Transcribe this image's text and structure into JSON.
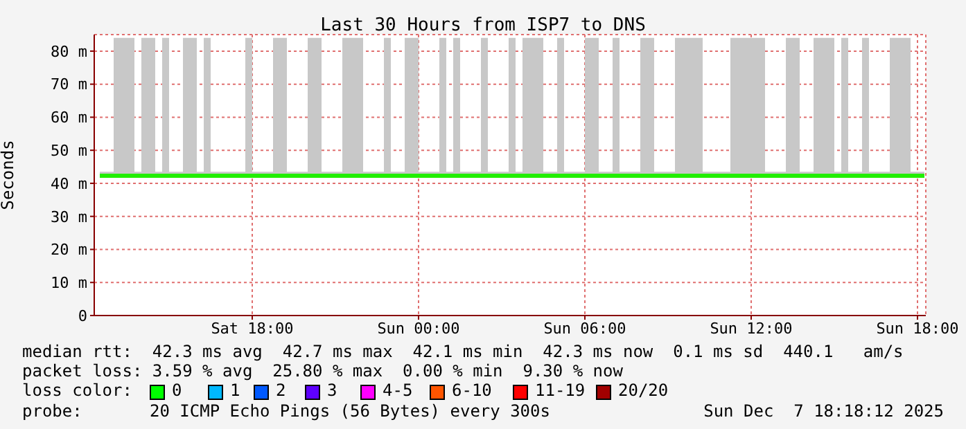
{
  "chart_data": {
    "type": "line",
    "title": "Last 30 Hours from ISP7 to DNS",
    "ylabel": "Seconds",
    "x": [
      "2025-12-06T12:30",
      "2025-12-06T12:45",
      "2025-12-06T13:00",
      "2025-12-06T13:15",
      "2025-12-06T13:30",
      "2025-12-06T13:45",
      "2025-12-06T14:00",
      "2025-12-06T14:15",
      "2025-12-06T14:30",
      "2025-12-06T14:45",
      "2025-12-06T15:00",
      "2025-12-06T15:15",
      "2025-12-06T15:30",
      "2025-12-06T15:45",
      "2025-12-06T16:00",
      "2025-12-06T16:15",
      "2025-12-06T16:30",
      "2025-12-06T16:45",
      "2025-12-06T17:00",
      "2025-12-06T17:15",
      "2025-12-06T17:30",
      "2025-12-06T17:45",
      "2025-12-06T18:00",
      "2025-12-06T18:15",
      "2025-12-06T18:30",
      "2025-12-06T18:45",
      "2025-12-06T19:00",
      "2025-12-06T19:15",
      "2025-12-06T19:30",
      "2025-12-06T19:45",
      "2025-12-06T20:00",
      "2025-12-06T20:15",
      "2025-12-06T20:30",
      "2025-12-06T20:45",
      "2025-12-06T21:00",
      "2025-12-06T21:15",
      "2025-12-06T21:30",
      "2025-12-06T21:45",
      "2025-12-06T22:00",
      "2025-12-06T22:15",
      "2025-12-06T22:30",
      "2025-12-06T22:45",
      "2025-12-06T23:00",
      "2025-12-06T23:15",
      "2025-12-06T23:30",
      "2025-12-06T23:45",
      "2025-12-07T00:00",
      "2025-12-07T00:15",
      "2025-12-07T00:30",
      "2025-12-07T00:45",
      "2025-12-07T01:00",
      "2025-12-07T01:15",
      "2025-12-07T01:30",
      "2025-12-07T01:45",
      "2025-12-07T02:00",
      "2025-12-07T02:15",
      "2025-12-07T02:30",
      "2025-12-07T02:45",
      "2025-12-07T03:00",
      "2025-12-07T03:15",
      "2025-12-07T03:30",
      "2025-12-07T03:45",
      "2025-12-07T04:00",
      "2025-12-07T04:15",
      "2025-12-07T04:30",
      "2025-12-07T04:45",
      "2025-12-07T05:00",
      "2025-12-07T05:15",
      "2025-12-07T05:30",
      "2025-12-07T05:45",
      "2025-12-07T06:00",
      "2025-12-07T06:15",
      "2025-12-07T06:30",
      "2025-12-07T06:45",
      "2025-12-07T07:00",
      "2025-12-07T07:15",
      "2025-12-07T07:30",
      "2025-12-07T07:45",
      "2025-12-07T08:00",
      "2025-12-07T08:15",
      "2025-12-07T08:30",
      "2025-12-07T08:45",
      "2025-12-07T09:00",
      "2025-12-07T09:15",
      "2025-12-07T09:30",
      "2025-12-07T09:45",
      "2025-12-07T10:00",
      "2025-12-07T10:15",
      "2025-12-07T10:30",
      "2025-12-07T10:45",
      "2025-12-07T11:00",
      "2025-12-07T11:15",
      "2025-12-07T11:30",
      "2025-12-07T11:45",
      "2025-12-07T12:00",
      "2025-12-07T12:15",
      "2025-12-07T12:30",
      "2025-12-07T12:45",
      "2025-12-07T13:00",
      "2025-12-07T13:15",
      "2025-12-07T13:30",
      "2025-12-07T13:45",
      "2025-12-07T14:00",
      "2025-12-07T14:15",
      "2025-12-07T14:30",
      "2025-12-07T14:45",
      "2025-12-07T15:00",
      "2025-12-07T15:15",
      "2025-12-07T15:30",
      "2025-12-07T15:45",
      "2025-12-07T16:00",
      "2025-12-07T16:15",
      "2025-12-07T16:30",
      "2025-12-07T16:45",
      "2025-12-07T17:00",
      "2025-12-07T17:15",
      "2025-12-07T17:30",
      "2025-12-07T17:45",
      "2025-12-07T18:00",
      "2025-12-07T18:15"
    ],
    "series": [
      {
        "color": "#22ee00",
        "values": [
          42.3,
          42.3,
          42.3,
          42.3,
          42.3,
          42.3,
          42.3,
          42.3,
          42.3,
          42.3,
          42.3,
          42.3,
          42.3,
          42.3,
          42.3,
          42.3,
          42.3,
          42.3,
          42.3,
          42.3,
          42.3,
          42.3,
          42.3,
          42.3,
          42.3,
          42.3,
          42.3,
          42.3,
          42.3,
          42.3,
          42.3,
          42.3,
          42.3,
          42.3,
          42.3,
          42.3,
          42.3,
          42.3,
          42.3,
          42.3,
          42.3,
          42.3,
          42.3,
          42.3,
          42.3,
          42.3,
          42.3,
          42.3,
          42.3,
          42.3,
          42.3,
          42.3,
          42.3,
          42.3,
          42.3,
          42.3,
          42.3,
          42.3,
          42.3,
          42.3,
          42.3,
          42.3,
          42.3,
          42.3,
          42.3,
          42.3,
          42.3,
          42.3,
          42.3,
          42.3,
          42.3,
          42.3,
          42.3,
          42.3,
          42.3,
          42.3,
          42.3,
          42.3,
          42.3,
          42.3,
          42.3,
          42.3,
          42.3,
          42.3,
          42.3,
          42.3,
          42.3,
          42.3,
          42.3,
          42.3,
          42.3,
          42.3,
          42.3,
          42.3,
          42.3,
          42.3,
          42.3,
          42.3,
          42.3,
          42.3,
          42.3,
          42.3,
          42.3,
          42.3,
          42.3,
          42.3,
          42.3,
          42.3,
          42.3,
          42.3,
          42.3,
          42.3,
          42.3,
          42.3,
          42.3,
          42.3,
          42.3,
          42.3,
          42.3,
          42.3
        ],
        "lower": [
          42,
          42,
          42,
          42,
          42,
          42,
          42,
          42,
          42,
          42,
          42,
          42,
          42,
          42,
          42,
          42,
          42,
          42,
          42,
          42,
          42,
          42,
          42,
          42,
          42,
          42,
          42,
          42,
          42,
          42,
          42,
          42,
          42,
          42,
          42,
          42,
          42,
          42,
          42,
          42,
          42,
          42,
          42,
          42,
          42,
          42,
          42,
          42,
          42,
          42,
          42,
          42,
          42,
          42,
          42,
          42,
          42,
          42,
          42,
          42,
          42,
          42,
          42,
          42,
          42,
          42,
          42,
          42,
          42,
          42,
          42,
          42,
          42,
          42,
          42,
          42,
          42,
          42,
          42,
          42,
          42,
          42,
          42,
          42,
          42,
          42,
          42,
          42,
          42,
          42,
          42,
          42,
          42,
          42,
          42,
          42,
          42,
          42,
          42,
          42,
          42,
          42,
          42,
          42,
          42,
          42,
          42,
          42,
          42,
          42,
          42,
          42,
          42,
          42,
          42,
          42,
          42,
          42,
          42,
          42
        ],
        "upper": [
          43.5,
          43.5,
          84,
          84,
          84,
          43.5,
          84,
          84,
          43.5,
          84,
          43.5,
          43.5,
          84,
          84,
          43.5,
          84,
          43.5,
          43.5,
          43.5,
          43.5,
          43.5,
          84,
          43.5,
          43.5,
          43.5,
          84,
          84,
          43.5,
          43.5,
          43.5,
          84,
          84,
          43.5,
          43.5,
          43.5,
          84,
          84,
          84,
          43.5,
          43.5,
          43.5,
          84,
          43.5,
          43.5,
          84,
          84,
          43.5,
          43.5,
          43.5,
          84,
          43.5,
          84,
          43.5,
          43.5,
          43.5,
          84,
          43.5,
          43.5,
          43.5,
          84,
          43.5,
          84,
          84,
          84,
          43.5,
          43.5,
          84,
          43.5,
          43.5,
          43.5,
          84,
          84,
          43.5,
          43.5,
          84,
          43.5,
          43.5,
          43.5,
          84,
          84,
          43.5,
          43.5,
          43.5,
          84,
          84,
          84,
          84,
          43.5,
          43.5,
          43.5,
          43.5,
          84,
          84,
          84,
          84,
          84,
          43.5,
          43.5,
          43.5,
          84,
          84,
          43.5,
          43.5,
          84,
          84,
          84,
          43.5,
          84,
          43.5,
          43.5,
          84,
          43.5,
          43.5,
          43.5,
          84,
          84,
          84,
          43.5,
          43.5,
          43.5
        ]
      }
    ],
    "xlim": [
      "2025-12-06T12:18",
      "2025-12-07T18:18"
    ],
    "xticks": [
      {
        "value": "2025-12-06T18:00",
        "label": "Sat 18:00"
      },
      {
        "value": "2025-12-07T00:00",
        "label": "Sun 00:00"
      },
      {
        "value": "2025-12-07T06:00",
        "label": "Sun 06:00"
      },
      {
        "value": "2025-12-07T12:00",
        "label": "Sun 12:00"
      },
      {
        "value": "2025-12-07T18:00",
        "label": "Sun 18:00"
      }
    ],
    "ylim": [
      0,
      85
    ],
    "yticks": [
      0,
      {
        "value": 10,
        "label": "10 m"
      },
      {
        "value": 20,
        "label": "20 m"
      },
      {
        "value": 30,
        "label": "30 m"
      },
      {
        "value": 40,
        "label": "40 m"
      },
      {
        "value": 50,
        "label": "50 m"
      },
      {
        "value": 60,
        "label": "60 m"
      },
      {
        "value": 70,
        "label": "70 m"
      },
      {
        "value": 80,
        "label": "80 m"
      }
    ],
    "grid": true,
    "legend": false,
    "marker": "none",
    "line_style": "solid",
    "annotations": [
      "median rtt:  42.3 ms avg  42.7 ms max  42.1 ms min  42.3 ms now  0.1 ms sd  440.1   am/s",
      "packet loss: 3.59 % avg  25.80 % max  0.00 % min  9.30 % now",
      "loss color:",
      "0",
      "1",
      "2",
      "3",
      "4-5",
      "6-10",
      "11-19",
      "20/20",
      "probe:",
      "20 ICMP Echo Pings (56 Bytes) every 300s",
      "Sun Dec  7 18:18:12 2025"
    ]
  }
}
